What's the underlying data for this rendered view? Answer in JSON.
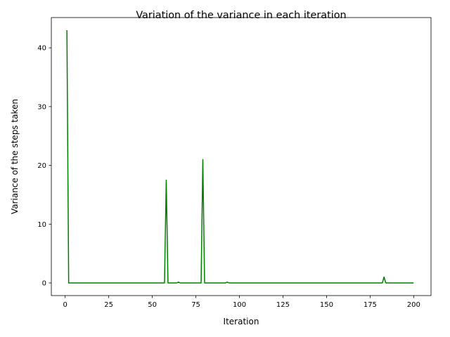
{
  "chart_data": {
    "type": "line",
    "title": "Variation of the variance in each iteration",
    "xlabel": "Iteration",
    "ylabel": "Variance of the steps taken",
    "xlim": [
      -7.95,
      209.95
    ],
    "ylim": [
      -2.15,
      45.15
    ],
    "xticks": [
      0,
      25,
      50,
      75,
      100,
      125,
      150,
      175,
      200
    ],
    "yticks": [
      0,
      10,
      20,
      30,
      40
    ],
    "grid": false,
    "colors": {
      "line": "#008000"
    },
    "series": [
      {
        "x": [
          1,
          2,
          56,
          57,
          58,
          59,
          64,
          65,
          66,
          77,
          78,
          79,
          80,
          92,
          93,
          94,
          181,
          182,
          183,
          184,
          200
        ],
        "y": [
          43,
          0,
          0,
          0,
          17.5,
          0,
          0,
          0.15,
          0,
          0,
          0,
          21,
          0,
          0,
          0.15,
          0,
          0,
          0,
          1.0,
          0,
          0
        ]
      }
    ]
  }
}
